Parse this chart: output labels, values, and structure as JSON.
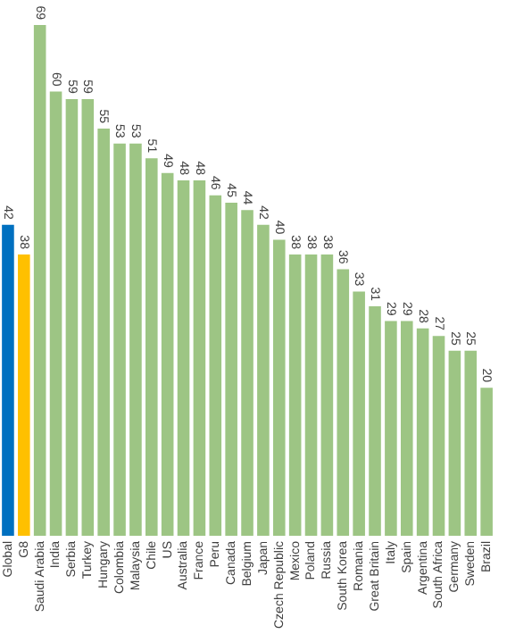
{
  "chart_data": {
    "type": "bar",
    "categories": [
      "Global",
      "G8",
      "Saudi Arabia",
      "India",
      "Serbia",
      "Turkey",
      "Hungary",
      "Colombia",
      "Malaysia",
      "Chile",
      "US",
      "Australia",
      "France",
      "Peru",
      "Canada",
      "Belgium",
      "Japan",
      "Czech Republic",
      "Mexico",
      "Poland",
      "Russia",
      "South Korea",
      "Romania",
      "Great Britain",
      "Italy",
      "Spain",
      "Argentina",
      "South Africa",
      "Germany",
      "Sweden",
      "Brazil"
    ],
    "values": [
      42,
      38,
      69,
      60,
      59,
      59,
      55,
      53,
      53,
      51,
      49,
      48,
      48,
      46,
      45,
      44,
      42,
      40,
      38,
      38,
      38,
      36,
      33,
      31,
      29,
      29,
      28,
      27,
      25,
      25,
      20
    ],
    "colors": [
      "#0070c0",
      "#ffc000",
      "#9dc584",
      "#9dc584",
      "#9dc584",
      "#9dc584",
      "#9dc584",
      "#9dc584",
      "#9dc584",
      "#9dc584",
      "#9dc584",
      "#9dc584",
      "#9dc584",
      "#9dc584",
      "#9dc584",
      "#9dc584",
      "#9dc584",
      "#9dc584",
      "#9dc584",
      "#9dc584",
      "#9dc584",
      "#9dc584",
      "#9dc584",
      "#9dc584",
      "#9dc584",
      "#9dc584",
      "#9dc584",
      "#9dc584",
      "#9dc584",
      "#9dc584",
      "#9dc584"
    ],
    "data_labels": true,
    "grid": false,
    "legend": false
  }
}
